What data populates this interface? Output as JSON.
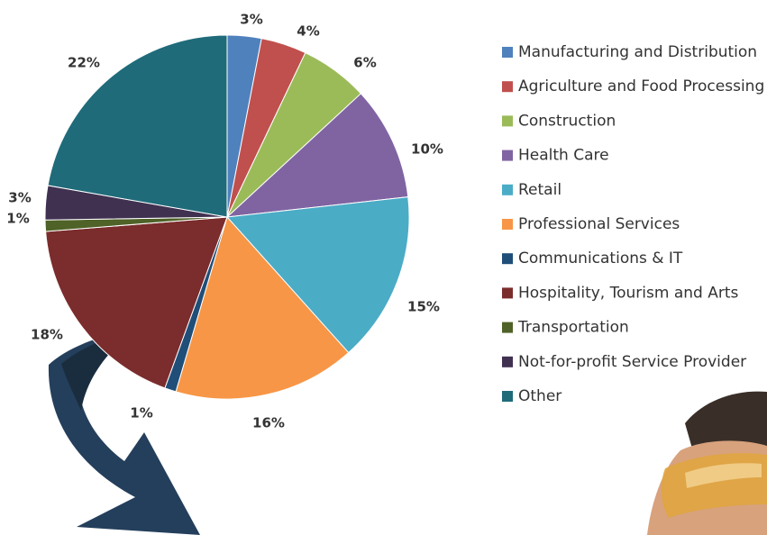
{
  "chart_data": {
    "type": "pie",
    "categories": [
      "Manufacturing and Distribution",
      "Agriculture and Food Processing",
      "Construction",
      "Health Care",
      "Retail",
      "Professional Services",
      "Communications & IT",
      "Hospitality, Tourism and Arts",
      "Transportation",
      "Not-for-profit Service Provider",
      "Other"
    ],
    "values": [
      3,
      4,
      6,
      10,
      15,
      16,
      1,
      18,
      1,
      3,
      22
    ],
    "data_labels": [
      "3%",
      "4%",
      "6%",
      "10%",
      "15%",
      "16%",
      "1%",
      "18%",
      "1%",
      "3%",
      "22%"
    ],
    "colors": [
      "#4f81bd",
      "#c0504d",
      "#9bbb59",
      "#8064a2",
      "#4bacc6",
      "#f79646",
      "#1f4e79",
      "#7b2c2c",
      "#4f6228",
      "#403151",
      "#1f6b7a"
    ],
    "legend_position": "right",
    "start_angle_deg": 0,
    "direction": "clockwise"
  },
  "decoration": {
    "arrow_color": "#243f5c",
    "arrow_shade_color": "#1a2d3e",
    "photo_icon": "worker-with-safety-goggles"
  }
}
